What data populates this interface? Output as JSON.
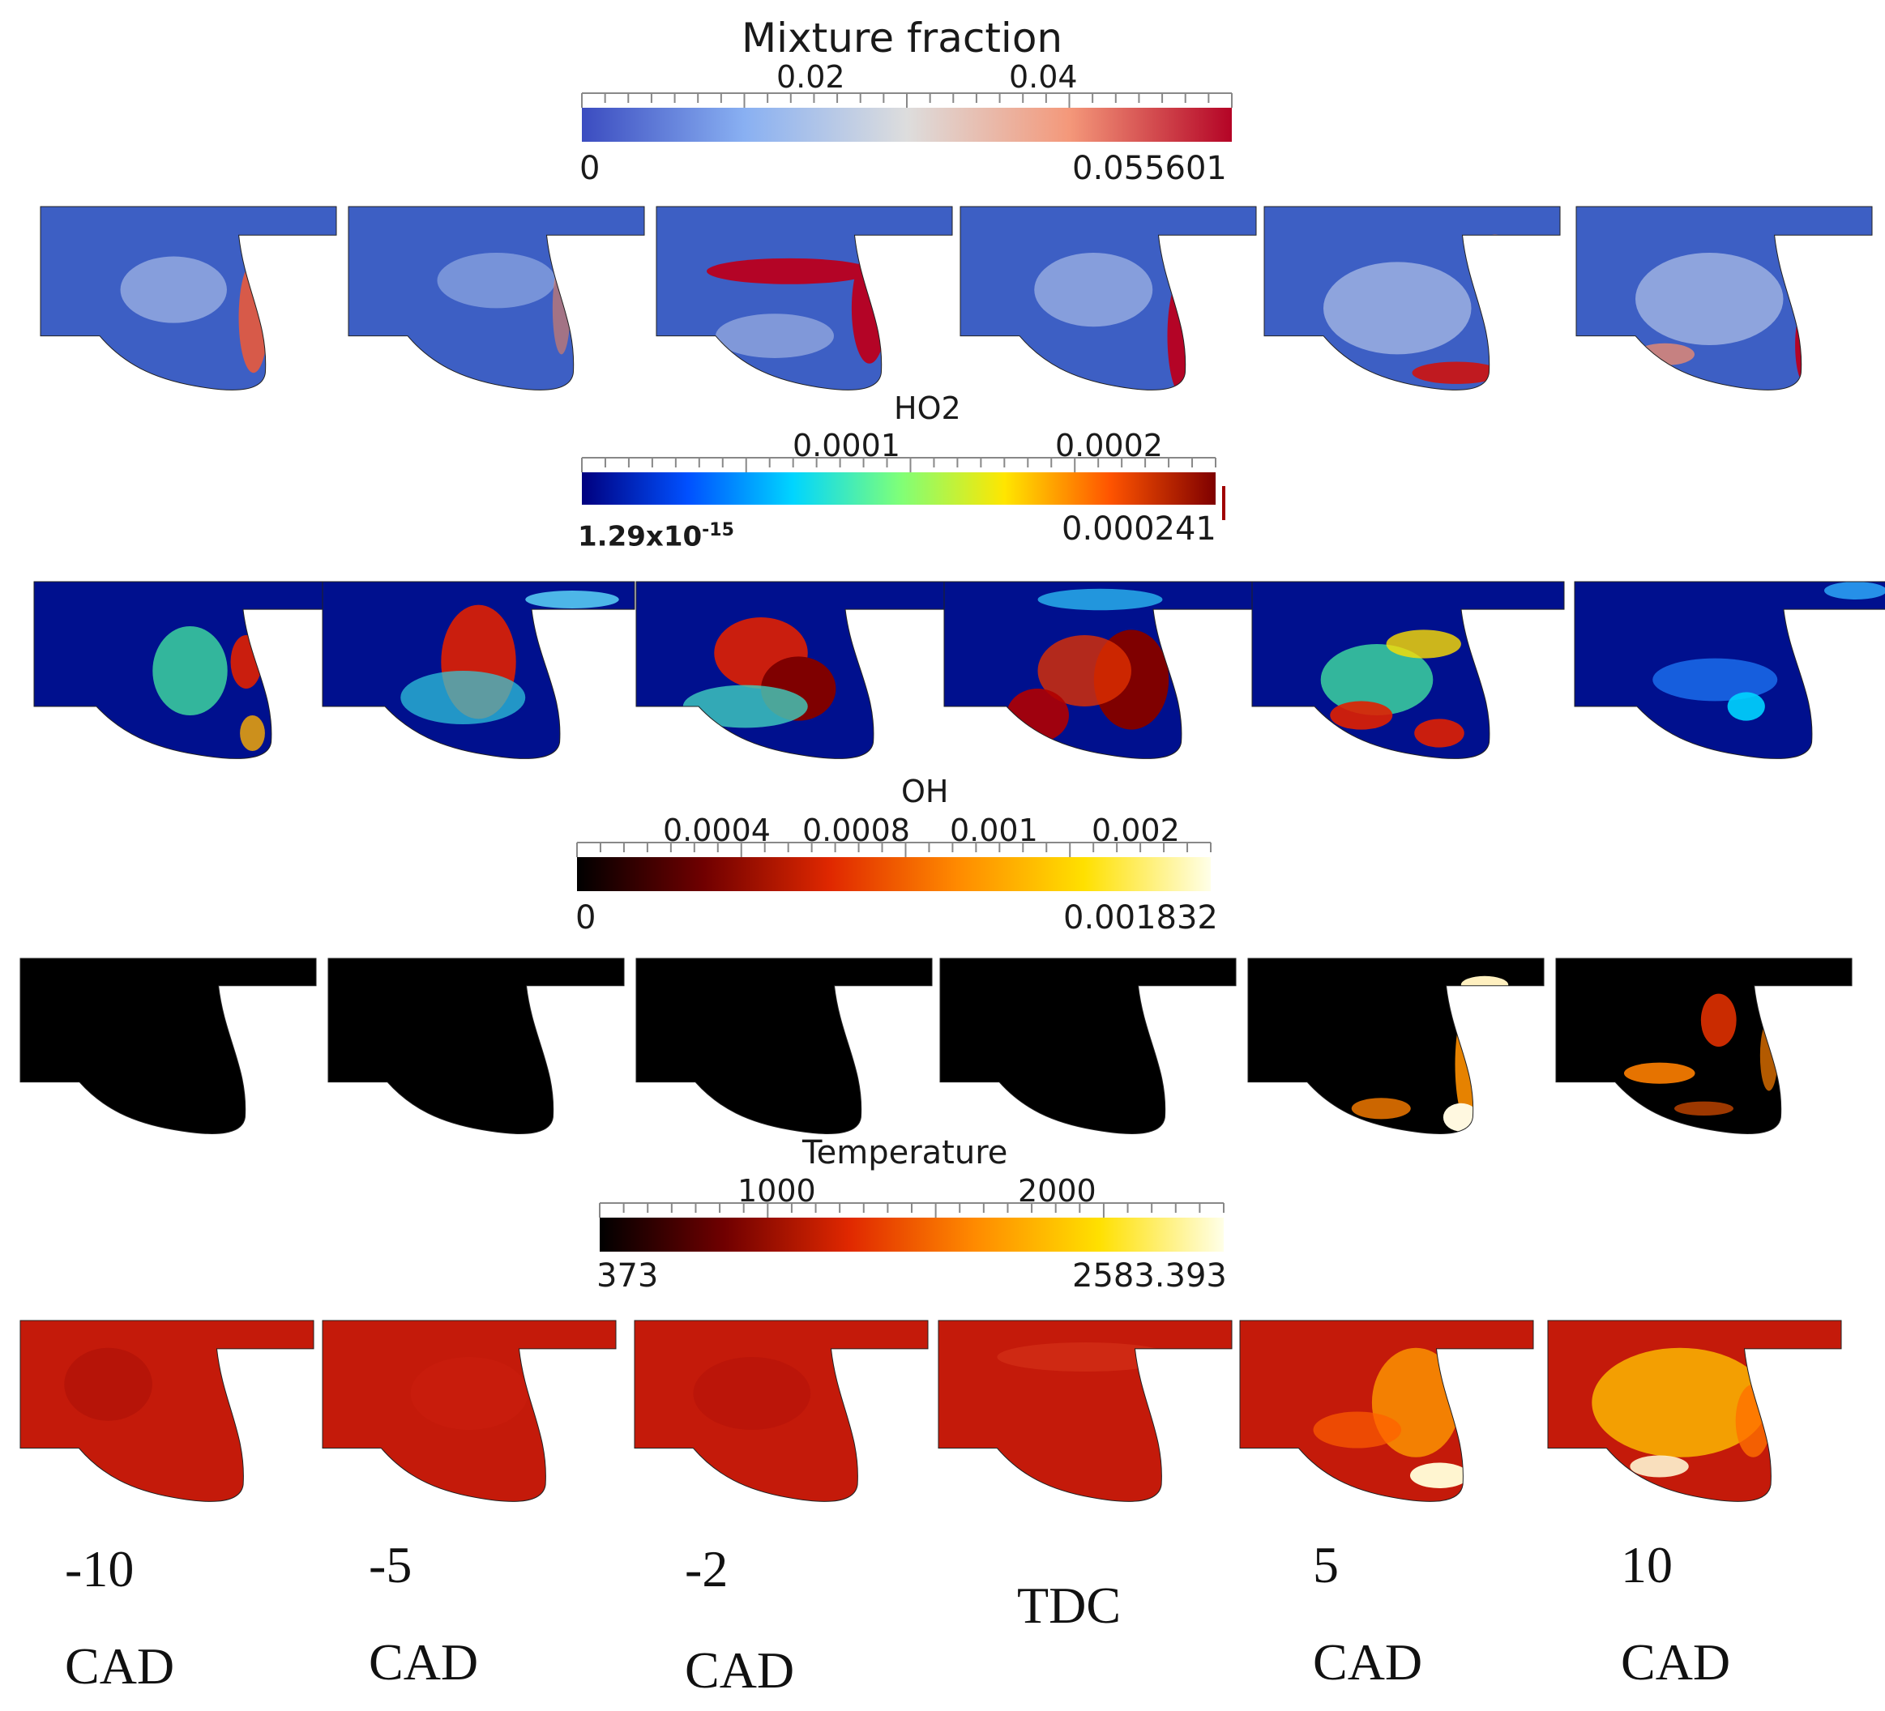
{
  "figure": {
    "colorbars": [
      {
        "title": "Mixture fraction",
        "min_label": "0",
        "max_label": "0.055601",
        "ticks": [
          "0.02",
          "0.04"
        ],
        "gradient": [
          "#3b4cc0",
          "#89b0f2",
          "#dddddd",
          "#f4987a",
          "#b40426"
        ]
      },
      {
        "title": "HO2",
        "min_label": "1.29x10",
        "min_label_exp": "-15",
        "max_label": "0.000241",
        "ticks": [
          "0.0001",
          "0.0002"
        ],
        "gradient": [
          "#00007f",
          "#0050ff",
          "#00d5ff",
          "#7dff7a",
          "#ffe600",
          "#ff5400",
          "#7f0000"
        ]
      },
      {
        "title": "OH",
        "min_label": "0",
        "max_label": "0.001832",
        "ticks": [
          "0.0004",
          "0.0008",
          "0.001",
          "0.002"
        ],
        "gradient": [
          "#000000",
          "#700000",
          "#e02800",
          "#ff8a00",
          "#ffe000",
          "#ffffe8"
        ]
      },
      {
        "title": "Temperature",
        "min_label": "373",
        "max_label": "2583.393",
        "ticks": [
          "1000",
          "2000"
        ],
        "gradient": [
          "#000000",
          "#700000",
          "#e02800",
          "#ff8a00",
          "#ffe000",
          "#ffffe8"
        ]
      }
    ],
    "crank_angles": [
      {
        "value": "-10",
        "unit": "CAD"
      },
      {
        "value": "-5",
        "unit": "CAD"
      },
      {
        "value": "-2",
        "unit": "CAD"
      },
      {
        "value": "TDC",
        "unit": ""
      },
      {
        "value": "5",
        "unit": "CAD"
      },
      {
        "value": "10",
        "unit": "CAD"
      }
    ],
    "field_colors": {
      "mixture_base": "#3d5fc4",
      "ho2_base": "#00108e",
      "oh_base": "#000000",
      "temperature_base": "#c41a0a"
    }
  }
}
